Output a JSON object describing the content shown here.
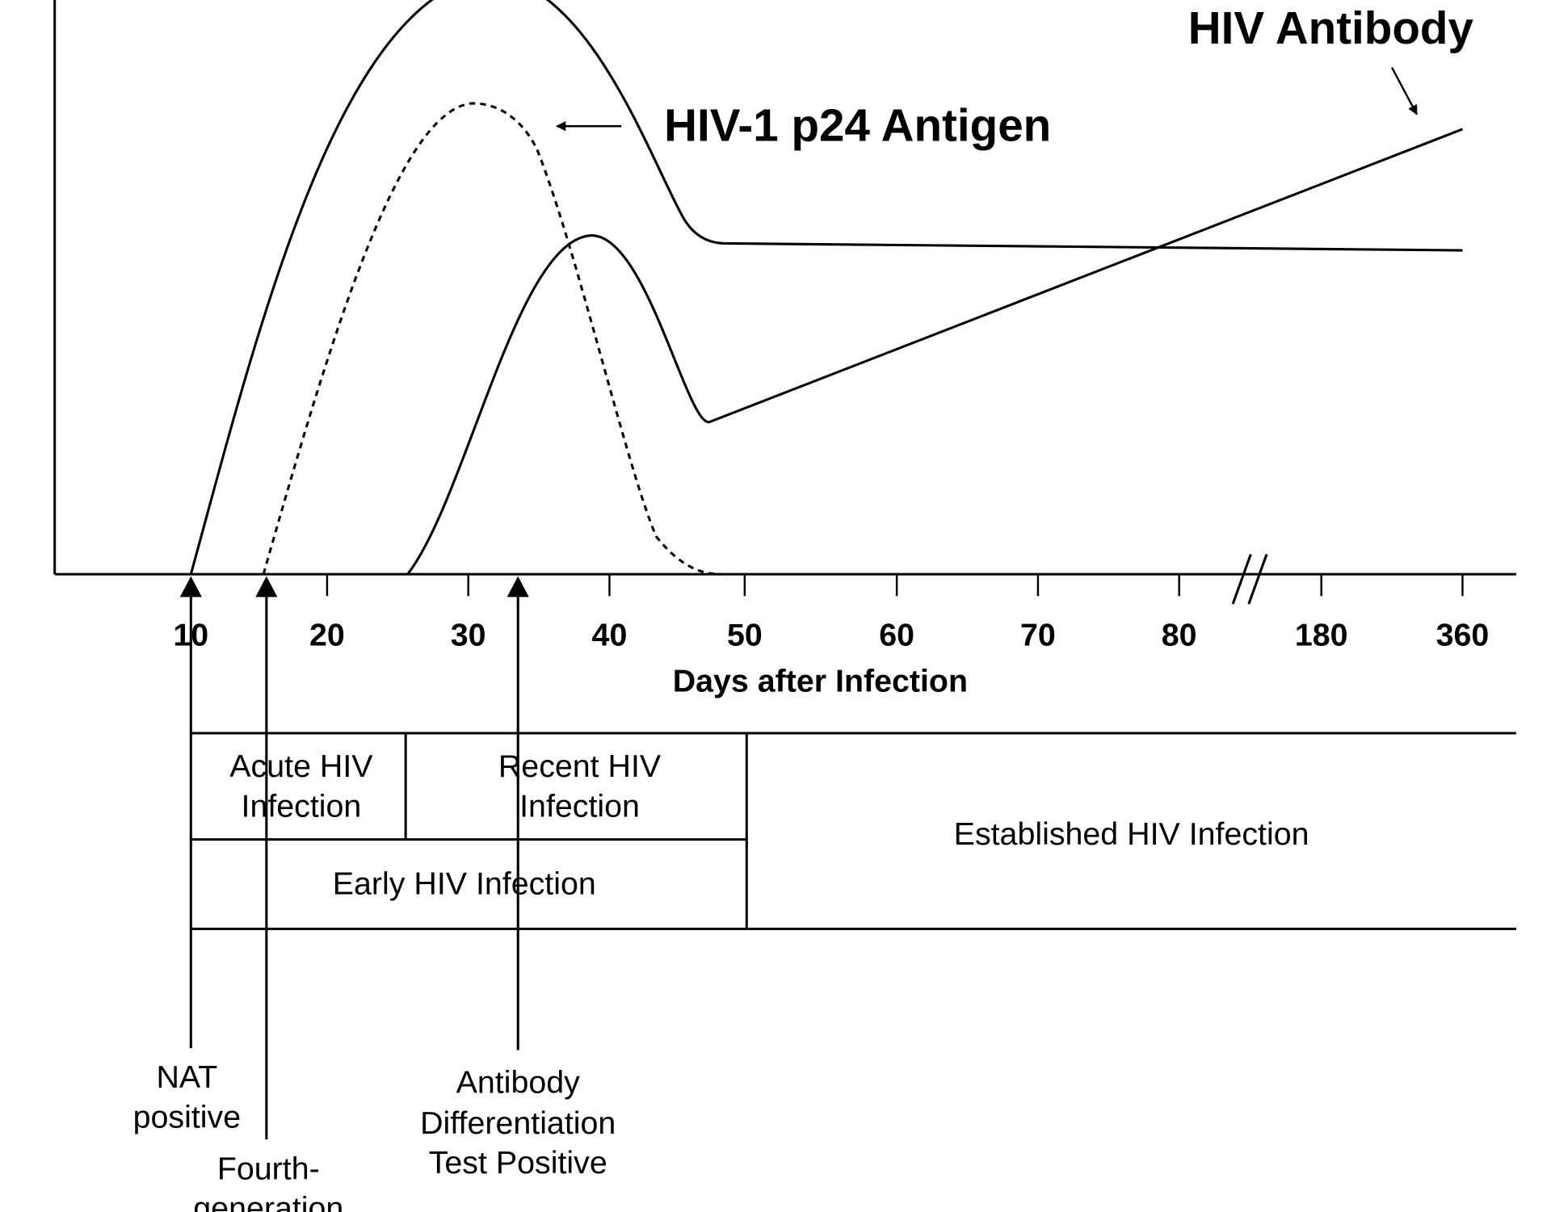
{
  "axis": {
    "ticks": [
      10,
      20,
      30,
      40,
      50,
      60,
      70,
      80,
      180,
      360
    ],
    "title": "Days after Infection"
  },
  "curve_labels": {
    "p24": "HIV-1 p24 Antigen",
    "antibody": "HIV Antibody"
  },
  "stages": {
    "acute": [
      "Acute HIV",
      "Infection"
    ],
    "recent": [
      "Recent HIV",
      "Infection"
    ],
    "early": "Early HIV Infection",
    "established": "Established HIV Infection"
  },
  "markers": {
    "nat": [
      "NAT",
      "positive"
    ],
    "fourth_gen": [
      "Fourth-",
      "generation"
    ],
    "antibody_diff": [
      "Antibody",
      "Differentiation",
      "Test Positive"
    ]
  }
}
